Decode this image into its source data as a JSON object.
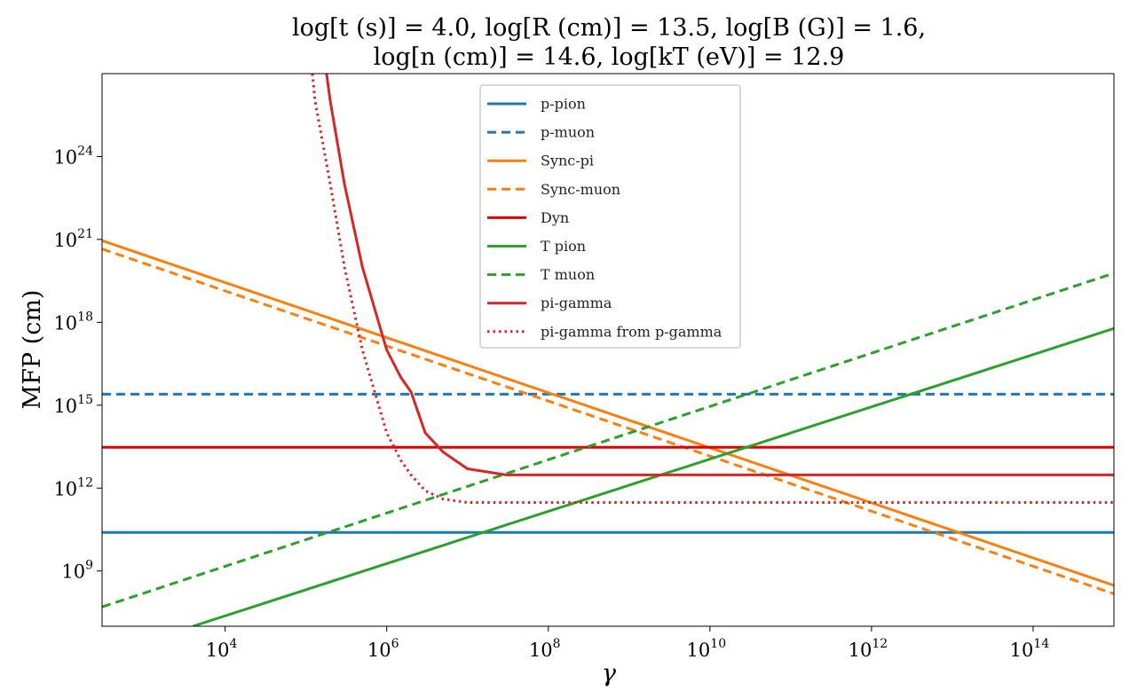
{
  "chart_data": {
    "type": "line",
    "title_lines": [
      "log[t (s)] = 4.0, log[R (cm)] = 13.5, log[B (G)] = 1.6,",
      "log[n (cm)] = 14.6, log[kT (eV)] = 12.9"
    ],
    "xlabel": "γ",
    "ylabel": "MFP (cm)",
    "x_scale": "log",
    "y_scale": "log",
    "xlim": [
      300,
      1000000000000000.0
    ],
    "ylim": [
      10000000.0,
      1e+27
    ],
    "x_ticks": [
      {
        "base": "10",
        "exp": "4",
        "value": 10000.0
      },
      {
        "base": "10",
        "exp": "6",
        "value": 1000000.0
      },
      {
        "base": "10",
        "exp": "8",
        "value": 100000000.0
      },
      {
        "base": "10",
        "exp": "10",
        "value": 10000000000.0
      },
      {
        "base": "10",
        "exp": "12",
        "value": 1000000000000.0
      },
      {
        "base": "10",
        "exp": "14",
        "value": 100000000000000.0
      }
    ],
    "y_ticks": [
      {
        "base": "10",
        "exp": "9",
        "value": 1000000000.0
      },
      {
        "base": "10",
        "exp": "12",
        "value": 1000000000000.0
      },
      {
        "base": "10",
        "exp": "15",
        "value": 1000000000000000.0
      },
      {
        "base": "10",
        "exp": "18",
        "value": 1e+18
      },
      {
        "base": "10",
        "exp": "21",
        "value": 1e+21
      },
      {
        "base": "10",
        "exp": "24",
        "value": 1e+24
      }
    ],
    "grid": false,
    "legend_position": "top-center",
    "series": [
      {
        "name": "p-pion",
        "color": "#1f77b4",
        "dash": "solid",
        "x": [
          300,
          1000000000000000.0
        ],
        "y": [
          25000000000.0,
          25000000000.0
        ]
      },
      {
        "name": "p-muon",
        "color": "#1f77b4",
        "dash": "dashed",
        "x": [
          300,
          1000000000000000.0
        ],
        "y": [
          2500000000000000.0,
          2500000000000000.0
        ]
      },
      {
        "name": "Sync-pi",
        "color": "#ff7f0e",
        "dash": "solid",
        "x": [
          300,
          1000000000000000.0
        ],
        "y": [
          9e+20,
          300000000.0
        ]
      },
      {
        "name": "Sync-muon",
        "color": "#ff7f0e",
        "dash": "dashed",
        "x": [
          300,
          1000000000000000.0
        ],
        "y": [
          4.5e+20,
          150000000.0
        ]
      },
      {
        "name": "Dyn",
        "color": "#e00000",
        "dash": "solid",
        "x": [
          300,
          1000000000000000.0
        ],
        "y": [
          30000000000000.0,
          30000000000000.0
        ]
      },
      {
        "name": "T pion",
        "color": "#2ca02c",
        "dash": "solid",
        "x": [
          4000,
          1000000000000000.0
        ],
        "y": [
          10000000.0,
          6e+17
        ]
      },
      {
        "name": "T muon",
        "color": "#2ca02c",
        "dash": "dashed",
        "x": [
          300,
          1000000000000000.0
        ],
        "y": [
          50000000.0,
          6e+19
        ]
      },
      {
        "name": "pi-gamma",
        "color": "#d62728",
        "dash": "solid",
        "x": [
          180000,
          200000,
          300000,
          500000,
          1000000,
          1500000,
          2000000,
          3000000,
          5000000,
          10000000,
          30000000,
          100000000,
          1000000000000000
        ],
        "y": [
          1e+27,
          1e+26,
          1e+23,
          1e+20,
          1e+17,
          1e+16,
          3000000000000000.0,
          100000000000000.0,
          20000000000000.0,
          5000000000000.0,
          3000000000000.0,
          3000000000000.0,
          3000000000000.0
        ]
      },
      {
        "name": "pi-gamma from p-gamma",
        "color": "#d62728",
        "dash": "dotted",
        "x": [
          120000,
          130000,
          200000,
          300000,
          500000,
          1000000,
          1500000,
          2000000,
          3000000,
          5000000,
          10000000,
          30000000,
          1000000000000000
        ],
        "y": [
          1e+27,
          1e+26,
          1e+23,
          1e+20,
          1e+17,
          100000000000000.0,
          10000000000000.0,
          3000000000000.0,
          800000000000.0,
          400000000000.0,
          300000000000.0,
          300000000000.0,
          300000000000.0
        ]
      }
    ]
  }
}
